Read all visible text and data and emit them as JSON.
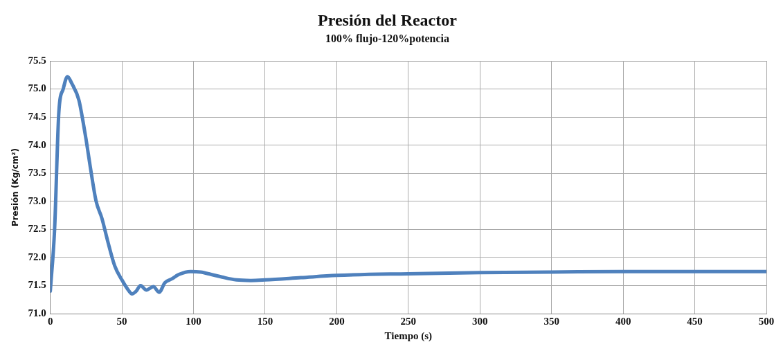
{
  "chart_data": {
    "type": "line",
    "title": "Presión del Reactor",
    "subtitle": "100% flujo-120%potencia",
    "xlabel": "Tiempo (s)",
    "ylabel": "Presión (Kg/cm²)",
    "x": [
      0,
      3,
      6,
      9,
      12,
      15,
      20,
      23,
      25,
      28,
      32,
      36,
      40,
      45,
      50,
      55,
      57,
      60,
      63,
      67,
      72,
      76,
      80,
      85,
      90,
      98,
      105,
      112,
      120,
      130,
      140,
      150,
      175,
      200,
      250,
      300,
      350,
      400,
      450,
      500
    ],
    "series": [
      {
        "color": "#4f81bd",
        "values": [
          71.4,
          72.5,
          74.6,
          75.0,
          75.22,
          75.1,
          74.8,
          74.4,
          74.1,
          73.6,
          73.0,
          72.7,
          72.3,
          71.85,
          71.6,
          71.4,
          71.35,
          71.4,
          71.5,
          71.42,
          71.48,
          71.38,
          71.55,
          71.62,
          71.7,
          71.75,
          71.74,
          71.7,
          71.65,
          71.6,
          71.59,
          71.6,
          71.64,
          71.68,
          71.71,
          71.73,
          71.74,
          71.75,
          71.75,
          71.75
        ]
      }
    ],
    "xlim": [
      0,
      500
    ],
    "xticks": [
      0,
      50,
      100,
      150,
      200,
      250,
      300,
      350,
      400,
      450,
      500
    ],
    "ylim": [
      71,
      75.5
    ],
    "yticks": [
      {
        "value": 71,
        "label": "71.0"
      },
      71.5,
      {
        "value": 72,
        "label": "72.0"
      },
      72.5,
      {
        "value": 73,
        "label": "73.0"
      },
      73.5,
      {
        "value": 74,
        "label": "74.0"
      },
      74.5,
      {
        "value": 75,
        "label": "75.0"
      },
      75.5
    ],
    "grid": true,
    "legend": false,
    "marker": "none",
    "line_style": "solid"
  }
}
